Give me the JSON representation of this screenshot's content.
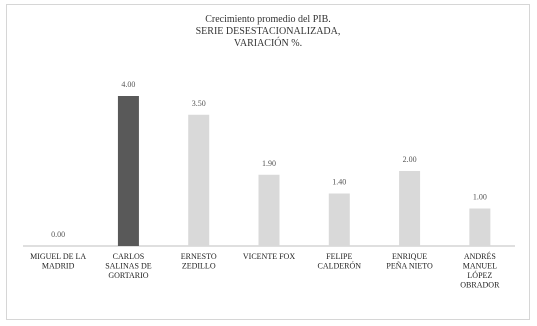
{
  "chart_data": {
    "type": "bar",
    "title_lines": [
      "Crecimiento promedio del PIB.",
      "SERIE DESESTACIONALIZADA,",
      "VARIACIÓN %."
    ],
    "categories": [
      [
        "MIGUEL DE LA",
        "MADRID"
      ],
      [
        "CARLOS",
        "SALINAS DE",
        "GORTARIO"
      ],
      [
        "ERNESTO",
        "ZEDILLO"
      ],
      [
        "VICENTE FOX"
      ],
      [
        "FELIPE",
        "CALDERÓN"
      ],
      [
        "ENRIQUE",
        "PEÑA NIETO"
      ],
      [
        "ANDRÉS",
        "MANUEL",
        "LÓPEZ",
        "OBRADOR"
      ]
    ],
    "values": [
      0.0,
      4.0,
      3.5,
      1.9,
      1.4,
      2.0,
      1.0
    ],
    "value_labels": [
      "0.00",
      "4.00",
      "3.50",
      "1.90",
      "1.40",
      "2.00",
      "1.00"
    ],
    "highlight_index": 1,
    "colors": {
      "bar": "#d9d9d9",
      "highlight": "#595959",
      "axis": "#bfbfbf"
    },
    "ylim": [
      0,
      4.0
    ],
    "grid": false,
    "legend": "none"
  }
}
